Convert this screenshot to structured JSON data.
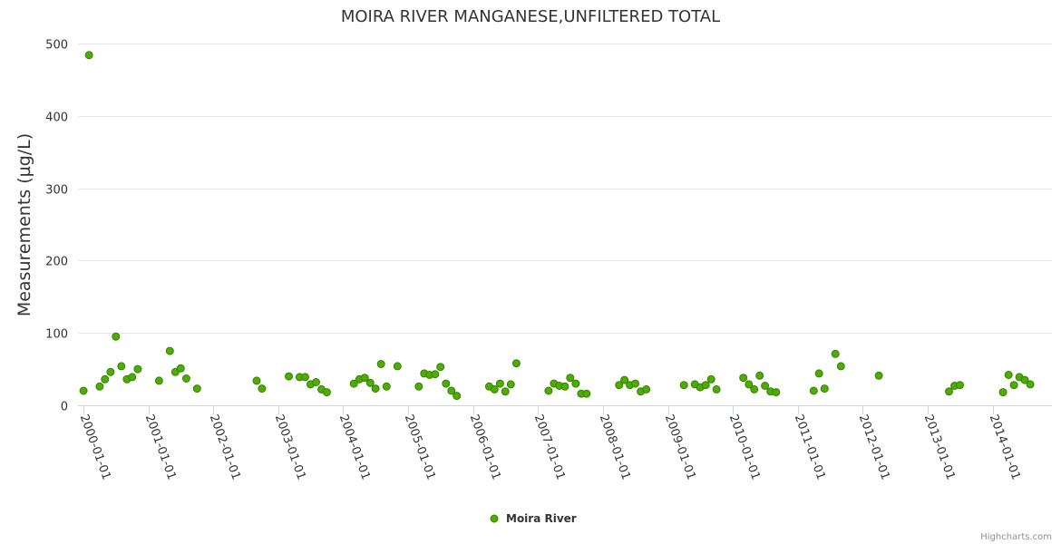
{
  "chart_data": {
    "type": "scatter",
    "title": "MOIRA RIVER MANGANESE,UNFILTERED TOTAL",
    "ylabel": "Measurements (µg/L)",
    "xlabel": "",
    "ylim": [
      0,
      500
    ],
    "yticks": [
      0,
      100,
      200,
      300,
      400,
      500
    ],
    "xlim": [
      "1999-12-01",
      "2014-12-01"
    ],
    "xticks": [
      "2000-01-01",
      "2001-01-01",
      "2002-01-01",
      "2003-01-01",
      "2004-01-01",
      "2005-01-01",
      "2006-01-01",
      "2007-01-01",
      "2008-01-01",
      "2009-01-01",
      "2010-01-01",
      "2011-01-01",
      "2012-01-01",
      "2013-01-01",
      "2014-01-01"
    ],
    "grid": true,
    "legend": "bottom-center",
    "series": [
      {
        "name": "Moira River",
        "color": "#4caf00",
        "stroke": "#3a7d0a",
        "points": [
          [
            "2000-01-01",
            20
          ],
          [
            "2000-02-01",
            484
          ],
          [
            "2000-04-01",
            26
          ],
          [
            "2000-05-01",
            36
          ],
          [
            "2000-06-01",
            46
          ],
          [
            "2000-07-01",
            95
          ],
          [
            "2000-08-01",
            54
          ],
          [
            "2000-09-01",
            36
          ],
          [
            "2000-10-01",
            39
          ],
          [
            "2000-11-01",
            50
          ],
          [
            "2001-03-01",
            34
          ],
          [
            "2001-05-01",
            75
          ],
          [
            "2001-06-01",
            46
          ],
          [
            "2001-07-01",
            51
          ],
          [
            "2001-08-01",
            37
          ],
          [
            "2001-10-01",
            23
          ],
          [
            "2002-09-01",
            34
          ],
          [
            "2002-10-01",
            23
          ],
          [
            "2003-03-01",
            40
          ],
          [
            "2003-05-01",
            39
          ],
          [
            "2003-06-01",
            39
          ],
          [
            "2003-07-01",
            29
          ],
          [
            "2003-08-01",
            32
          ],
          [
            "2003-09-01",
            22
          ],
          [
            "2003-10-01",
            18
          ],
          [
            "2004-03-01",
            30
          ],
          [
            "2004-04-01",
            36
          ],
          [
            "2004-05-01",
            38
          ],
          [
            "2004-06-01",
            31
          ],
          [
            "2004-07-01",
            23
          ],
          [
            "2004-08-01",
            57
          ],
          [
            "2004-09-01",
            26
          ],
          [
            "2004-11-01",
            54
          ],
          [
            "2005-03-01",
            26
          ],
          [
            "2005-04-01",
            44
          ],
          [
            "2005-05-01",
            42
          ],
          [
            "2005-06-01",
            43
          ],
          [
            "2005-07-01",
            53
          ],
          [
            "2005-08-01",
            30
          ],
          [
            "2005-09-01",
            20
          ],
          [
            "2005-10-01",
            13
          ],
          [
            "2006-04-01",
            26
          ],
          [
            "2006-05-01",
            22
          ],
          [
            "2006-06-01",
            30
          ],
          [
            "2006-07-01",
            19
          ],
          [
            "2006-08-01",
            29
          ],
          [
            "2006-09-01",
            58
          ],
          [
            "2007-03-01",
            20
          ],
          [
            "2007-04-01",
            30
          ],
          [
            "2007-05-01",
            27
          ],
          [
            "2007-06-01",
            26
          ],
          [
            "2007-07-01",
            38
          ],
          [
            "2007-08-01",
            30
          ],
          [
            "2007-09-01",
            16
          ],
          [
            "2007-10-01",
            16
          ],
          [
            "2008-04-01",
            28
          ],
          [
            "2008-05-01",
            35
          ],
          [
            "2008-06-01",
            28
          ],
          [
            "2008-07-01",
            30
          ],
          [
            "2008-08-01",
            19
          ],
          [
            "2008-09-01",
            22
          ],
          [
            "2009-04-01",
            28
          ],
          [
            "2009-06-01",
            29
          ],
          [
            "2009-07-01",
            25
          ],
          [
            "2009-08-01",
            28
          ],
          [
            "2009-09-01",
            36
          ],
          [
            "2009-10-01",
            22
          ],
          [
            "2010-03-01",
            38
          ],
          [
            "2010-04-01",
            29
          ],
          [
            "2010-05-01",
            22
          ],
          [
            "2010-06-01",
            41
          ],
          [
            "2010-07-01",
            27
          ],
          [
            "2010-08-01",
            19
          ],
          [
            "2010-09-01",
            18
          ],
          [
            "2011-04-01",
            20
          ],
          [
            "2011-05-01",
            44
          ],
          [
            "2011-06-01",
            23
          ],
          [
            "2011-08-01",
            71
          ],
          [
            "2011-09-01",
            54
          ],
          [
            "2012-04-01",
            41
          ],
          [
            "2013-05-01",
            19
          ],
          [
            "2013-06-01",
            27
          ],
          [
            "2013-07-01",
            28
          ],
          [
            "2014-03-01",
            18
          ],
          [
            "2014-04-01",
            42
          ],
          [
            "2014-05-01",
            28
          ],
          [
            "2014-06-01",
            39
          ],
          [
            "2014-07-01",
            35
          ],
          [
            "2014-08-01",
            29
          ]
        ]
      }
    ]
  },
  "credits": "Highcharts.com"
}
